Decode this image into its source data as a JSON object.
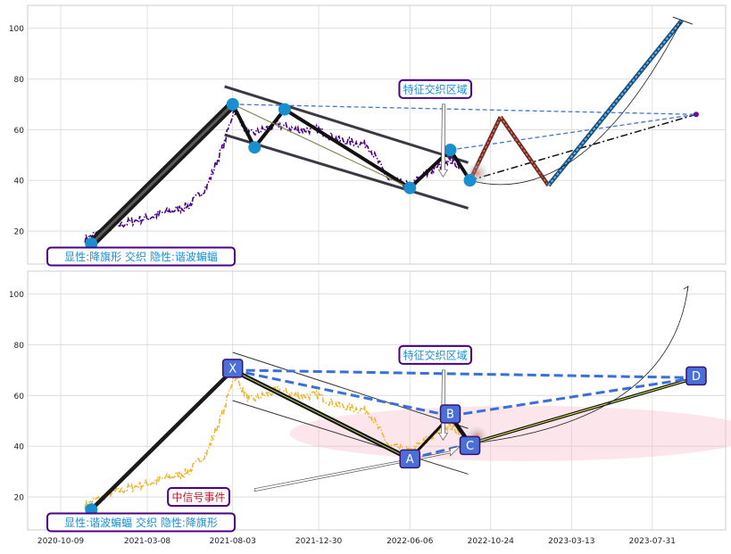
{
  "chart_data": [
    {
      "type": "line",
      "panel": "top",
      "title": "",
      "xlabel": "",
      "ylabel": "",
      "ylim": [
        7,
        109
      ],
      "y_ticks": [
        20,
        40,
        60,
        80,
        100
      ],
      "x_ticks": [
        "2020-10-09",
        "2021-03-08",
        "2021-08-03",
        "2021-12-30",
        "2022-06-06",
        "2022-10-24",
        "2023-03-13",
        "2023-07-31"
      ],
      "grid": true,
      "price_series": {
        "color": "#4b0082",
        "style": "dash-dot",
        "anchors": [
          [
            "2020-11-20",
            17
          ],
          [
            "2021-01-10",
            22
          ],
          [
            "2021-03-20",
            26
          ],
          [
            "2021-05-20",
            30
          ],
          [
            "2021-06-20",
            38
          ],
          [
            "2021-07-20",
            55
          ],
          [
            "2021-08-05",
            68
          ],
          [
            "2021-09-01",
            58
          ],
          [
            "2021-10-20",
            62
          ],
          [
            "2021-11-20",
            60
          ],
          [
            "2021-12-30",
            60
          ],
          [
            "2022-02-01",
            56
          ],
          [
            "2022-03-25",
            54
          ],
          [
            "2022-05-01",
            40
          ],
          [
            "2022-06-06",
            38
          ],
          [
            "2022-07-15",
            44
          ],
          [
            "2022-08-10",
            48
          ],
          [
            "2022-09-01",
            46
          ]
        ]
      },
      "pivots": [
        {
          "date": "2020-12-01",
          "value": 15
        },
        {
          "date": "2021-08-03",
          "value": 70
        },
        {
          "date": "2021-09-10",
          "value": 53
        },
        {
          "date": "2021-11-01",
          "value": 68
        },
        {
          "date": "2022-06-06",
          "value": 37
        },
        {
          "date": "2022-08-15",
          "value": 52
        },
        {
          "date": "2022-09-18",
          "value": 40
        }
      ],
      "channel": [
        {
          "from": [
            "2021-07-20",
            77
          ],
          "to": [
            "2022-09-15",
            47
          ]
        },
        {
          "from": [
            "2021-07-20",
            58
          ],
          "to": [
            "2022-09-15",
            29
          ]
        }
      ],
      "forecast_red": [
        [
          "2022-09-18",
          40
        ],
        [
          "2022-11-10",
          65
        ],
        [
          "2023-02-01",
          38
        ]
      ],
      "forecast_blue": [
        [
          "2023-02-01",
          38
        ],
        [
          "2023-09-20",
          103
        ]
      ],
      "dashed_target": {
        "from": [
          "2021-08-03",
          70
        ],
        "to": [
          "2023-10-15",
          66
        ]
      },
      "dashdot_target": {
        "from": [
          "2022-09-18",
          40
        ],
        "to": [
          "2023-10-15",
          66
        ]
      },
      "annotations": [
        {
          "text": "特征交织区域",
          "date": "2022-07-20",
          "value": 76
        },
        {
          "text": "显性:降旗形 交织 隐性:谐波蝙蝠",
          "date": "2021-03-01",
          "value": 10
        }
      ]
    },
    {
      "type": "line",
      "panel": "bottom",
      "title": "",
      "xlabel": "",
      "ylabel": "",
      "ylim": [
        7,
        109
      ],
      "y_ticks": [
        20,
        40,
        60,
        80,
        100
      ],
      "x_ticks": [
        "2020-10-09",
        "2021-03-08",
        "2021-08-03",
        "2021-12-30",
        "2022-06-06",
        "2022-10-24",
        "2023-03-13",
        "2023-07-31"
      ],
      "grid": true,
      "price_series": {
        "color": "#f0b429",
        "style": "dash-dot",
        "anchors": [
          [
            "2020-11-20",
            17
          ],
          [
            "2021-01-10",
            22
          ],
          [
            "2021-03-20",
            26
          ],
          [
            "2021-05-20",
            30
          ],
          [
            "2021-06-20",
            38
          ],
          [
            "2021-07-20",
            55
          ],
          [
            "2021-08-05",
            68
          ],
          [
            "2021-09-01",
            58
          ],
          [
            "2021-10-20",
            62
          ],
          [
            "2021-11-20",
            60
          ],
          [
            "2021-12-30",
            60
          ],
          [
            "2022-02-01",
            56
          ],
          [
            "2022-03-25",
            54
          ],
          [
            "2022-05-01",
            40
          ],
          [
            "2022-06-06",
            38
          ],
          [
            "2022-07-15",
            44
          ],
          [
            "2022-08-10",
            48
          ],
          [
            "2022-09-01",
            46
          ]
        ]
      },
      "xabcd": [
        {
          "label": "X",
          "date": "2021-08-03",
          "value": 70
        },
        {
          "label": "A",
          "date": "2022-06-06",
          "value": 35
        },
        {
          "label": "B",
          "date": "2022-08-15",
          "value": 52
        },
        {
          "label": "C",
          "date": "2022-09-18",
          "value": 41
        },
        {
          "label": "D",
          "date": "2023-10-15",
          "value": 67
        }
      ],
      "annotations": [
        {
          "text": "特征交织区域",
          "date": "2022-07-20",
          "value": 76
        },
        {
          "text": "中信号事件",
          "date": "2021-06-05",
          "value": 20
        },
        {
          "text": "显性:谐波蝙蝠 交织 隐性:降旗形",
          "date": "2021-03-01",
          "value": 10
        }
      ]
    }
  ]
}
